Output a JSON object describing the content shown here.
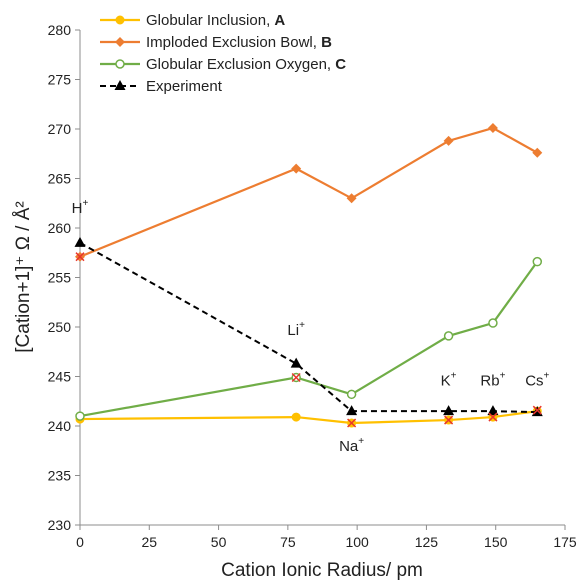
{
  "chart_data": {
    "type": "line",
    "xlabel": "Cation Ionic Radius/ pm",
    "ylabel": "[Cation+1]⁺ Ω / Å²",
    "xlim": [
      0,
      175
    ],
    "ylim": [
      230,
      280
    ],
    "x_ticks": [
      0,
      25,
      50,
      75,
      100,
      125,
      150,
      175
    ],
    "y_ticks": [
      230,
      235,
      240,
      245,
      250,
      255,
      260,
      265,
      270,
      275,
      280
    ],
    "grid": false,
    "legend_position": "top-left",
    "series": [
      {
        "name": "Globular Inclusion, ",
        "name_bold": "A",
        "color": "#FFC000",
        "marker": "filled-circle",
        "line": "solid",
        "x": [
          0,
          78,
          98,
          133,
          149,
          165
        ],
        "y": [
          240.7,
          240.9,
          240.3,
          240.6,
          240.9,
          241.5
        ]
      },
      {
        "name": "Imploded Exclusion Bowl, ",
        "name_bold": "B",
        "color": "#ED7D31",
        "marker": "filled-diamond",
        "line": "solid",
        "x": [
          0,
          78,
          98,
          133,
          149,
          165
        ],
        "y": [
          257.1,
          266.0,
          263.0,
          268.8,
          270.1,
          267.6
        ]
      },
      {
        "name": "Globular Exclusion Oxygen, ",
        "name_bold": "C",
        "color": "#70AD47",
        "marker": "open-circle",
        "line": "solid",
        "x": [
          0,
          78,
          98,
          133,
          149,
          165
        ],
        "y": [
          241.0,
          244.9,
          243.2,
          249.1,
          250.4,
          256.6
        ]
      },
      {
        "name": "Experiment",
        "name_bold": "",
        "color": "#000000",
        "marker": "filled-triangle",
        "line": "dashed",
        "x": [
          0,
          78,
          98,
          133,
          149,
          165
        ],
        "y": [
          258.5,
          246.3,
          241.5,
          241.5,
          241.5,
          241.4
        ]
      }
    ],
    "highlight_markers": {
      "marker": "cross",
      "color": "#E8342C",
      "x": [
        0,
        78,
        98,
        133,
        149,
        165
      ],
      "y": [
        257.1,
        244.9,
        240.3,
        240.6,
        240.9,
        241.6
      ]
    },
    "annotations": [
      {
        "base": "H",
        "sup": "+",
        "x": 0,
        "y": 261.5
      },
      {
        "base": "Li",
        "sup": "+",
        "x": 78,
        "y": 249.2
      },
      {
        "base": "Na",
        "sup": "+",
        "x": 98,
        "y": 237.5
      },
      {
        "base": "K",
        "sup": "+",
        "x": 133,
        "y": 244.1
      },
      {
        "base": "Rb",
        "sup": "+",
        "x": 149,
        "y": 244.1
      },
      {
        "base": "Cs",
        "sup": "+",
        "x": 165,
        "y": 244.1
      }
    ]
  }
}
